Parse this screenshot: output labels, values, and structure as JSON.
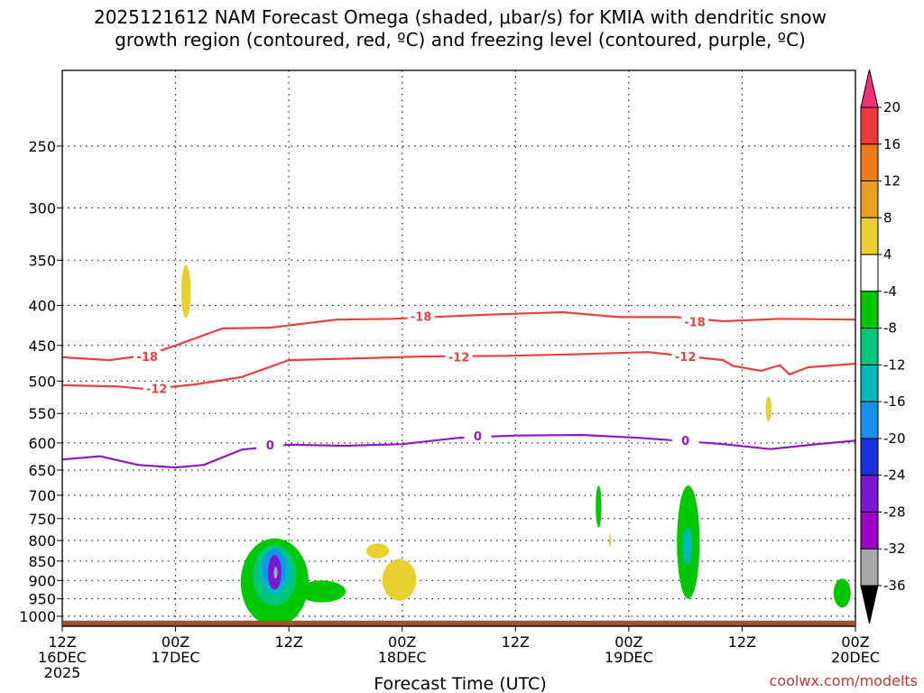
{
  "chart_data": {
    "type": "contour",
    "title": "2025121612 NAM Forecast Omega (shaded, μbar/s) for KMIA with dendritic snow",
    "title_line2": "growth region (contoured, red, ºC) and freezing level (contoured, purple, ºC)",
    "xlabel": "Forecast Time (UTC)",
    "credit": "coolwx.com/modelts",
    "x_range_hours": [
      0,
      84
    ],
    "y_range_mb": [
      200,
      1030
    ],
    "y_scale": "log",
    "x_ticks": [
      {
        "hour": 0,
        "lines": [
          "12Z",
          "16DEC",
          "2025"
        ]
      },
      {
        "hour": 12,
        "lines": [
          "00Z",
          "17DEC"
        ]
      },
      {
        "hour": 24,
        "lines": [
          "12Z"
        ]
      },
      {
        "hour": 36,
        "lines": [
          "00Z",
          "18DEC"
        ]
      },
      {
        "hour": 48,
        "lines": [
          "12Z"
        ]
      },
      {
        "hour": 60,
        "lines": [
          "00Z",
          "19DEC"
        ]
      },
      {
        "hour": 72,
        "lines": [
          "12Z"
        ]
      },
      {
        "hour": 84,
        "lines": [
          "00Z",
          "20DEC"
        ]
      }
    ],
    "y_ticks": [
      250,
      300,
      350,
      400,
      450,
      500,
      550,
      600,
      650,
      700,
      750,
      800,
      850,
      900,
      950,
      1000
    ],
    "colorbar": {
      "labels": [
        "20",
        "16",
        "12",
        "8",
        "4",
        "-4",
        "-8",
        "-12",
        "-16",
        "-20",
        "-24",
        "-28",
        "-32",
        "-36"
      ],
      "colors": [
        "#f0307a",
        "#ee3a3a",
        "#f07818",
        "#e8a020",
        "#e8d030",
        "#ffffff",
        "#00c800",
        "#00c878",
        "#00b8b8",
        "#1890f0",
        "#1830e0",
        "#7818d0",
        "#a000c8",
        "#a8a8a8",
        "#000000"
      ]
    },
    "contours": [
      {
        "name": "-18",
        "color": "#e84040",
        "points": [
          [
            0,
            466
          ],
          [
            5,
            470
          ],
          [
            9,
            463
          ],
          [
            12,
            450
          ],
          [
            17,
            428
          ],
          [
            22,
            427
          ],
          [
            29,
            417
          ],
          [
            35,
            416
          ],
          [
            45,
            411
          ],
          [
            53,
            408
          ],
          [
            59,
            414
          ],
          [
            65,
            414
          ],
          [
            70,
            419
          ],
          [
            76,
            416
          ],
          [
            84,
            417
          ]
        ],
        "labels": [
          [
            9,
            466
          ],
          [
            38,
            414
          ],
          [
            67,
            421
          ]
        ]
      },
      {
        "name": "-12",
        "color": "#e84040",
        "points": [
          [
            0,
            506
          ],
          [
            6,
            508
          ],
          [
            9,
            512
          ],
          [
            14,
            505
          ],
          [
            19,
            494
          ],
          [
            24,
            470
          ],
          [
            30,
            468
          ],
          [
            38,
            465
          ],
          [
            47,
            464
          ],
          [
            54,
            462
          ],
          [
            62,
            459
          ],
          [
            65,
            463
          ],
          [
            70,
            470
          ],
          [
            71,
            478
          ],
          [
            74,
            485
          ],
          [
            76,
            477
          ],
          [
            77,
            490
          ],
          [
            79,
            480
          ],
          [
            84,
            475
          ]
        ],
        "labels": [
          [
            10,
            512
          ],
          [
            42,
            467
          ],
          [
            66,
            466
          ]
        ]
      },
      {
        "name": "0",
        "color": "#9018c0",
        "points": [
          [
            0,
            630
          ],
          [
            4,
            624
          ],
          [
            8,
            640
          ],
          [
            12,
            645
          ],
          [
            15,
            640
          ],
          [
            19,
            612
          ],
          [
            24,
            603
          ],
          [
            30,
            605
          ],
          [
            36,
            602
          ],
          [
            42,
            591
          ],
          [
            48,
            587
          ],
          [
            55,
            586
          ],
          [
            61,
            591
          ],
          [
            66,
            597
          ],
          [
            70,
            602
          ],
          [
            75,
            611
          ],
          [
            80,
            602
          ],
          [
            84,
            596
          ]
        ],
        "labels": [
          [
            22,
            605
          ],
          [
            44,
            589
          ],
          [
            66,
            597
          ]
        ]
      }
    ],
    "omega_regions": [
      {
        "name": "omega-yellow-cell-17dec-0030z",
        "value": 6,
        "color": "#e8d030",
        "center": [
          13.1,
          385
        ],
        "semi_axes_h_mb": [
          0.5,
          30
        ]
      },
      {
        "name": "omega-green-cell-17dec-12z",
        "value": -6,
        "color": "#00c800",
        "center": [
          22.5,
          915
        ],
        "semi_axes_h_mb": [
          3.6,
          120
        ]
      },
      {
        "name": "omega-green-spur-17dec-15z",
        "value": -6,
        "color": "#00c800",
        "center": [
          27.5,
          930
        ],
        "semi_axes_h_mb": [
          2.5,
          30
        ]
      },
      {
        "name": "omega-teal-cell-17dec-12z",
        "value": -10,
        "color": "#00c878",
        "center": [
          22.5,
          890
        ],
        "semi_axes_h_mb": [
          2.3,
          80
        ]
      },
      {
        "name": "omega-cyan-cell-17dec-12z",
        "value": -14,
        "color": "#00b8b8",
        "center": [
          22.5,
          880
        ],
        "semi_axes_h_mb": [
          1.7,
          60
        ]
      },
      {
        "name": "omega-blue-cell-17dec-12z",
        "value": -18,
        "color": "#1890f0",
        "center": [
          22.5,
          870
        ],
        "semi_axes_h_mb": [
          1.2,
          50
        ]
      },
      {
        "name": "omega-violet-core-17dec-12z",
        "value": -30,
        "color": "#7818d0",
        "center": [
          22.5,
          880
        ],
        "semi_axes_h_mb": [
          0.7,
          45
        ]
      },
      {
        "name": "omega-gray-core-17dec-12z",
        "value": -34,
        "color": "#a8a8a8",
        "center": [
          22.6,
          880
        ],
        "semi_axes_h_mb": [
          0.2,
          15
        ]
      },
      {
        "name": "omega-yellow-cell-17dec-21z-upper",
        "value": 6,
        "color": "#e8d030",
        "center": [
          33.4,
          825
        ],
        "semi_axes_h_mb": [
          1.2,
          18
        ]
      },
      {
        "name": "omega-yellow-cell-17dec-23z",
        "value": 6,
        "color": "#e8d030",
        "center": [
          35.7,
          900
        ],
        "semi_axes_h_mb": [
          1.8,
          55
        ]
      },
      {
        "name": "omega-green-cell-18dec-21z",
        "value": -6,
        "color": "#00c800",
        "center": [
          56.8,
          725
        ],
        "semi_axes_h_mb": [
          0.3,
          45
        ]
      },
      {
        "name": "omega-yellow-cell-18dec-22z",
        "value": 6,
        "color": "#e8d030",
        "center": [
          58,
          800
        ],
        "semi_axes_h_mb": [
          0.1,
          15
        ]
      },
      {
        "name": "omega-green-cell-19dec-06z",
        "value": -6,
        "color": "#00c800",
        "center": [
          66.3,
          815
        ],
        "semi_axes_h_mb": [
          1.2,
          135
        ]
      },
      {
        "name": "omega-cyan-cell-19dec-06z",
        "value": -14,
        "color": "#00b8b8",
        "center": [
          66.2,
          815
        ],
        "semi_axes_h_mb": [
          0.5,
          45
        ]
      },
      {
        "name": "omega-yellow-cell-19dec-15z",
        "value": 6,
        "color": "#e8d030",
        "center": [
          74.8,
          543
        ],
        "semi_axes_h_mb": [
          0.3,
          20
        ]
      },
      {
        "name": "omega-green-cell-19dec-22z",
        "value": -6,
        "color": "#00c800",
        "center": [
          82.6,
          935
        ],
        "semi_axes_h_mb": [
          0.9,
          40
        ]
      }
    ]
  }
}
